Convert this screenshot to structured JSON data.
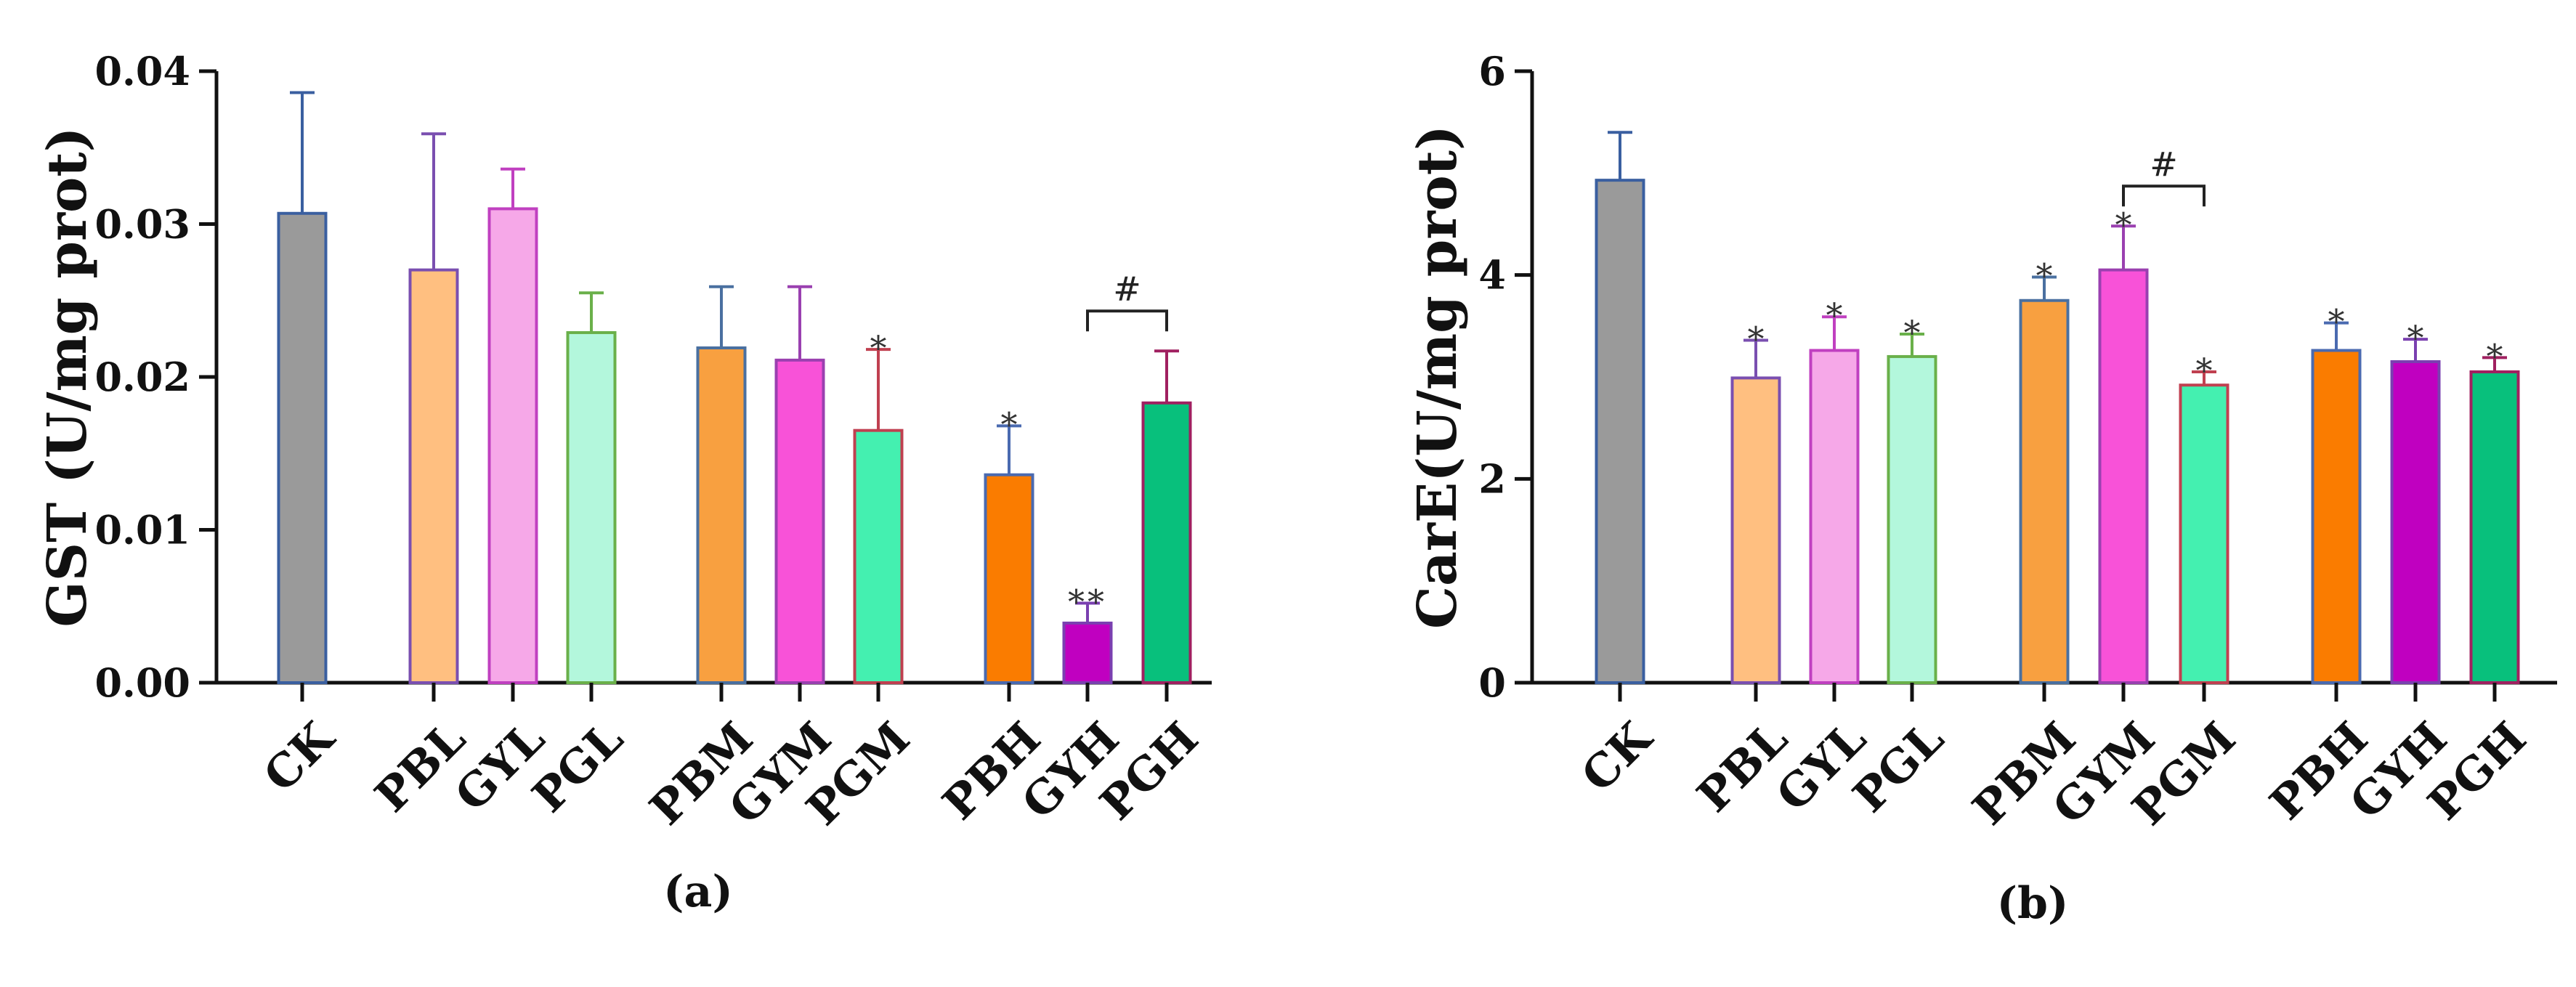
{
  "chart_data": [
    {
      "type": "bar",
      "panel_label": "(a)",
      "ylabel": "GST (U/mg prot)",
      "xlabel": "",
      "ylim": [
        0,
        0.04
      ],
      "yticks": [
        "0.00",
        "0.01",
        "0.02",
        "0.03",
        "0.04"
      ],
      "grid": false,
      "categories": [
        "CK",
        "PBL",
        "GYL",
        "PGL",
        "PBM",
        "GYM",
        "PGM",
        "PBH",
        "GYH",
        "PGH"
      ],
      "values": [
        0.0307,
        0.027,
        0.031,
        0.0229,
        0.0219,
        0.0211,
        0.0165,
        0.0136,
        0.0039,
        0.0183
      ],
      "errors": [
        0.0079,
        0.0089,
        0.0026,
        0.0026,
        0.004,
        0.0048,
        0.0053,
        0.0032,
        0.0013,
        0.0034
      ],
      "annotations": [
        "",
        "",
        "",
        "",
        "",
        "",
        "*",
        "*",
        "**",
        ""
      ],
      "bracket": {
        "from": "GYH",
        "to": "PGH",
        "label": "#"
      },
      "colors": [
        "#9a9a9a",
        "#ffbf80",
        "#f6a8e8",
        "#b3f7dc",
        "#f8a040",
        "#f852d8",
        "#44f0b0",
        "#fa7c00",
        "#c000c0",
        "#08c07c"
      ],
      "edge_colors": [
        "#3a5fa0",
        "#7a4fb0",
        "#c040c0",
        "#6ab04a",
        "#4a70a0",
        "#9a40b0",
        "#c04050",
        "#4a6ab0",
        "#7a40b0",
        "#a02060"
      ]
    },
    {
      "type": "bar",
      "panel_label": "(b)",
      "ylabel": "CarE(U/mg prot)",
      "xlabel": "",
      "ylim": [
        0,
        6
      ],
      "yticks": [
        "0",
        "2",
        "4",
        "6"
      ],
      "grid": false,
      "categories": [
        "CK",
        "PBL",
        "GYL",
        "PGL",
        "PBM",
        "GYM",
        "PGM",
        "PBH",
        "GYH",
        "PGH"
      ],
      "values": [
        4.93,
        2.99,
        3.26,
        3.2,
        3.75,
        4.05,
        2.92,
        3.26,
        3.15,
        3.05
      ],
      "errors": [
        0.47,
        0.37,
        0.33,
        0.22,
        0.23,
        0.43,
        0.13,
        0.27,
        0.22,
        0.14
      ],
      "annotations": [
        "",
        "*",
        "*",
        "*",
        "*",
        "*",
        "*",
        "*",
        "*",
        "*"
      ],
      "bracket": {
        "from": "GYM",
        "to": "PGM",
        "label": "#"
      },
      "colors": [
        "#9a9a9a",
        "#ffbf80",
        "#f6a8e8",
        "#b3f7dc",
        "#f8a040",
        "#f852d8",
        "#44f0b0",
        "#fa7c00",
        "#c000c0",
        "#08c07c"
      ],
      "edge_colors": [
        "#3a5fa0",
        "#7a4fb0",
        "#c040c0",
        "#6ab04a",
        "#4a70a0",
        "#9a40b0",
        "#c04050",
        "#4a6ab0",
        "#7a40b0",
        "#a02060"
      ]
    }
  ]
}
